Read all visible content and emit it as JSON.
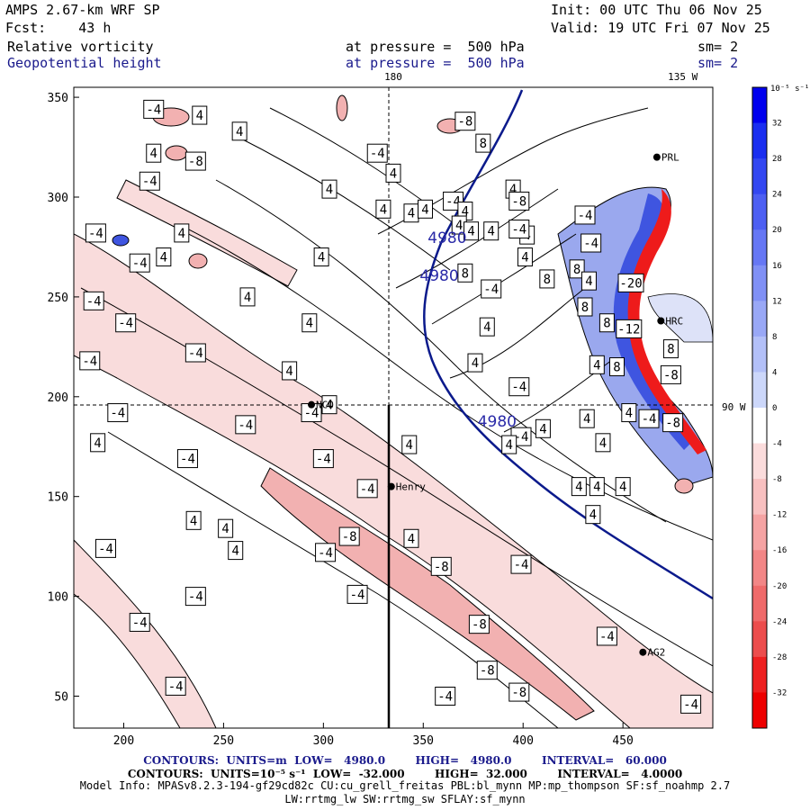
{
  "header": {
    "model": "AMPS 2.67-km WRF SP",
    "forecast": "Fcst:    43 h",
    "init": "Init: 00 UTC Thu 06 Nov 25",
    "valid": "Valid: 19 UTC Fri 07 Nov 25",
    "field1": "Relative vorticity",
    "field2": "Geopotential height",
    "pressure1": "at pressure =  500 hPa",
    "pressure2": "at pressure =  500 hPa",
    "sm1": "sm= 2",
    "sm2": "sm= 2"
  },
  "chart_data": {
    "type": "contour",
    "title": "Relative vorticity / Geopotential height at 500 hPa",
    "xlim": [
      175,
      495
    ],
    "ylim": [
      34,
      355
    ],
    "xticks": [
      200,
      250,
      300,
      350,
      400,
      450
    ],
    "yticks": [
      50,
      100,
      150,
      200,
      250,
      300,
      350
    ],
    "meridians": [
      {
        "label": "180",
        "x": 335
      },
      {
        "label": "135 W",
        "x": 480
      },
      {
        "label": "90 W",
        "y": 195
      }
    ],
    "cross_section_x": 333,
    "stations": [
      {
        "name": "NCO",
        "x": 294,
        "y": 196
      },
      {
        "name": "Henry",
        "x": 334,
        "y": 155
      },
      {
        "name": "HRC",
        "x": 469,
        "y": 238
      },
      {
        "name": "AG2",
        "x": 460,
        "y": 72
      },
      {
        "name": "PRL",
        "x": 467,
        "y": 320
      }
    ],
    "height_contours": [
      {
        "label": "4980",
        "x": 362,
        "y": 277
      },
      {
        "label": "4980",
        "x": 358,
        "y": 258
      },
      {
        "label": "4980",
        "x": 387,
        "y": 185
      }
    ],
    "vorticity_labels": [
      {
        "v": "-4",
        "x": 215,
        "y": 344
      },
      {
        "v": "4",
        "x": 238,
        "y": 341
      },
      {
        "v": "4",
        "x": 258,
        "y": 333
      },
      {
        "v": "4",
        "x": 215,
        "y": 322
      },
      {
        "v": "-8",
        "x": 236,
        "y": 318
      },
      {
        "v": "-4",
        "x": 213,
        "y": 308
      },
      {
        "v": "4",
        "x": 303,
        "y": 304
      },
      {
        "v": "-4",
        "x": 327,
        "y": 322
      },
      {
        "v": "4",
        "x": 335,
        "y": 312
      },
      {
        "v": "4",
        "x": 330,
        "y": 294
      },
      {
        "v": "-4",
        "x": 186,
        "y": 282
      },
      {
        "v": "4",
        "x": 229,
        "y": 282
      },
      {
        "v": "-4",
        "x": 208,
        "y": 267
      },
      {
        "v": "4",
        "x": 220,
        "y": 270
      },
      {
        "v": "4",
        "x": 299,
        "y": 270
      },
      {
        "v": "4",
        "x": 344,
        "y": 292
      },
      {
        "v": "4",
        "x": 351,
        "y": 294
      },
      {
        "v": "-4",
        "x": 185,
        "y": 248
      },
      {
        "v": "4",
        "x": 262,
        "y": 250
      },
      {
        "v": "-4",
        "x": 201,
        "y": 237
      },
      {
        "v": "4",
        "x": 293,
        "y": 237
      },
      {
        "v": "-4",
        "x": 236,
        "y": 222
      },
      {
        "v": "4",
        "x": 283,
        "y": 213
      },
      {
        "v": "-4",
        "x": 183,
        "y": 218
      },
      {
        "v": "-4",
        "x": 197,
        "y": 192
      },
      {
        "v": "-4",
        "x": 294,
        "y": 192
      },
      {
        "v": "4",
        "x": 303,
        "y": 196
      },
      {
        "v": "4",
        "x": 187,
        "y": 177
      },
      {
        "v": "-4",
        "x": 261,
        "y": 186
      },
      {
        "v": "-4",
        "x": 232,
        "y": 169
      },
      {
        "v": "-4",
        "x": 300,
        "y": 169
      },
      {
        "v": "4",
        "x": 343,
        "y": 176
      },
      {
        "v": "-4",
        "x": 322,
        "y": 154
      },
      {
        "v": "4",
        "x": 235,
        "y": 138
      },
      {
        "v": "4",
        "x": 251,
        "y": 134
      },
      {
        "v": "-8",
        "x": 313,
        "y": 130
      },
      {
        "v": "4",
        "x": 344,
        "y": 129
      },
      {
        "v": "4",
        "x": 256,
        "y": 123
      },
      {
        "v": "-4",
        "x": 191,
        "y": 124
      },
      {
        "v": "-4",
        "x": 301,
        "y": 122
      },
      {
        "v": "-8",
        "x": 359,
        "y": 115
      },
      {
        "v": "-4",
        "x": 236,
        "y": 100
      },
      {
        "v": "-4",
        "x": 317,
        "y": 101
      },
      {
        "v": "-8",
        "x": 378,
        "y": 86
      },
      {
        "v": "-4",
        "x": 208,
        "y": 87
      },
      {
        "v": "-8",
        "x": 382,
        "y": 63
      },
      {
        "v": "-4",
        "x": 226,
        "y": 55
      },
      {
        "v": "-4",
        "x": 361,
        "y": 50
      },
      {
        "v": "-8",
        "x": 398,
        "y": 52
      },
      {
        "v": "-8",
        "x": 371,
        "y": 338
      },
      {
        "v": "8",
        "x": 380,
        "y": 327
      },
      {
        "v": "4",
        "x": 395,
        "y": 304
      },
      {
        "v": "-4",
        "x": 365,
        "y": 298
      },
      {
        "v": "-8",
        "x": 398,
        "y": 298
      },
      {
        "v": "4",
        "x": 402,
        "y": 281
      },
      {
        "v": "-4",
        "x": 431,
        "y": 291
      },
      {
        "v": "4",
        "x": 371,
        "y": 293
      },
      {
        "v": "4",
        "x": 368,
        "y": 286
      },
      {
        "v": "4",
        "x": 374,
        "y": 283
      },
      {
        "v": "4",
        "x": 384,
        "y": 283
      },
      {
        "v": "-4",
        "x": 398,
        "y": 284
      },
      {
        "v": "8",
        "x": 371,
        "y": 262
      },
      {
        "v": "-4",
        "x": 434,
        "y": 277
      },
      {
        "v": "4",
        "x": 401,
        "y": 270
      },
      {
        "v": "8",
        "x": 427,
        "y": 264
      },
      {
        "v": "8",
        "x": 412,
        "y": 259
      },
      {
        "v": "-4",
        "x": 384,
        "y": 254
      },
      {
        "v": "4",
        "x": 433,
        "y": 258
      },
      {
        "v": "-20",
        "x": 454,
        "y": 257
      },
      {
        "v": "8",
        "x": 431,
        "y": 245
      },
      {
        "v": "4",
        "x": 382,
        "y": 235
      },
      {
        "v": "-12",
        "x": 453,
        "y": 234
      },
      {
        "v": "8",
        "x": 442,
        "y": 237
      },
      {
        "v": "4",
        "x": 376,
        "y": 217
      },
      {
        "v": "4",
        "x": 437,
        "y": 216
      },
      {
        "v": "8",
        "x": 474,
        "y": 224
      },
      {
        "v": "8",
        "x": 447,
        "y": 215
      },
      {
        "v": "-8",
        "x": 474,
        "y": 211
      },
      {
        "v": "-4",
        "x": 398,
        "y": 205
      },
      {
        "v": "4",
        "x": 432,
        "y": 189
      },
      {
        "v": "4",
        "x": 453,
        "y": 192
      },
      {
        "v": "-4",
        "x": 463,
        "y": 189
      },
      {
        "v": "-8",
        "x": 475,
        "y": 187
      },
      {
        "v": "4",
        "x": 410,
        "y": 184
      },
      {
        "v": "4",
        "x": 440,
        "y": 177
      },
      {
        "v": "-4",
        "x": 399,
        "y": 180
      },
      {
        "v": "4",
        "x": 393,
        "y": 176
      },
      {
        "v": "4",
        "x": 437,
        "y": 155
      },
      {
        "v": "4",
        "x": 450,
        "y": 155
      },
      {
        "v": "4",
        "x": 435,
        "y": 141
      },
      {
        "v": "-4",
        "x": 399,
        "y": 116
      },
      {
        "v": "4",
        "x": 428,
        "y": 155
      },
      {
        "v": "-4",
        "x": 442,
        "y": 80
      },
      {
        "v": "-4",
        "x": 484,
        "y": 46
      }
    ],
    "colorbar": {
      "units": "10⁻⁵ s⁻¹",
      "ticks": [
        "32",
        "28",
        "24",
        "20",
        "16",
        "12",
        "8",
        "4",
        "0",
        "-4",
        "-8",
        "-12",
        "-16",
        "-20",
        "-24",
        "-28",
        "-32"
      ]
    },
    "xlabel": "",
    "ylabel": ""
  },
  "footer": {
    "line1": "CONTOURS:  UNITS=m  LOW=   4980.0        HIGH=   4980.0        INTERVAL=   60.000",
    "line2": "CONTOURS:  UNITS=10⁻⁵ s⁻¹  LOW=  -32.000        HIGH=  32.000        INTERVAL=   4.0000",
    "line3": "Model Info: MPASv8.2.3-194-gf29cd82c CU:cu_grell_freitas PBL:bl_mynn MP:mp_thompson SF:sf_noahmp 2.7",
    "line4": "LW:rrtmg_lw SW:rrtmg_sw SFLAY:sf_mynn"
  }
}
